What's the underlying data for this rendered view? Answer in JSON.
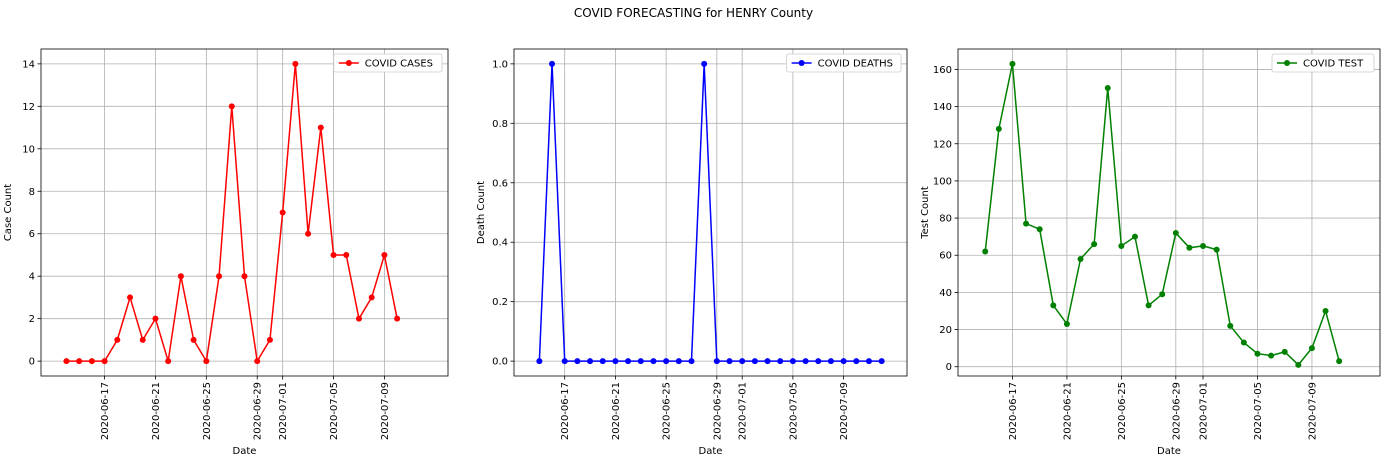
{
  "figure": {
    "suptitle": "COVID FORECASTING for HENRY County"
  },
  "chart_data": [
    {
      "type": "line",
      "title": "",
      "xlabel": "Date",
      "ylabel": "Case Count",
      "color": "#ff0000",
      "legend_position": "top-right",
      "grid": true,
      "x_start": "2020-06-14",
      "x_end": "2020-07-12",
      "xlim": [
        "2020-06-12",
        "2020-07-14"
      ],
      "ylim": [
        -0.7,
        14.7
      ],
      "yticks": [
        0,
        2,
        4,
        6,
        8,
        10,
        12,
        14
      ],
      "ytick_labels": [
        "0",
        "2",
        "4",
        "6",
        "8",
        "10",
        "12",
        "14"
      ],
      "xticks": [
        "2020-06-17",
        "2020-06-21",
        "2020-06-25",
        "2020-06-29",
        "2020-07-01",
        "2020-07-05",
        "2020-07-09"
      ],
      "series": [
        {
          "name": "COVID CASES",
          "values": [
            0,
            0,
            0,
            0,
            1,
            3,
            1,
            2,
            0,
            4,
            1,
            0,
            4,
            12,
            4,
            0,
            1,
            7,
            14,
            6,
            11,
            5,
            5,
            2,
            3,
            5,
            2
          ]
        }
      ]
    },
    {
      "type": "line",
      "title": "",
      "xlabel": "Date",
      "ylabel": "Death Count",
      "color": "#0000ff",
      "legend_position": "top-right",
      "grid": true,
      "x_start": "2020-06-15",
      "x_end": "2020-07-12",
      "xlim": [
        "2020-06-13",
        "2020-07-14"
      ],
      "ylim": [
        -0.05,
        1.05
      ],
      "yticks": [
        0,
        0.2,
        0.4,
        0.6,
        0.8,
        1.0
      ],
      "ytick_labels": [
        "0.0",
        "0.2",
        "0.4",
        "0.6",
        "0.8",
        "1.0"
      ],
      "xticks": [
        "2020-06-17",
        "2020-06-21",
        "2020-06-25",
        "2020-06-29",
        "2020-07-01",
        "2020-07-05",
        "2020-07-09"
      ],
      "series": [
        {
          "name": "COVID DEATHS",
          "values": [
            0,
            1,
            0,
            0,
            0,
            0,
            0,
            0,
            0,
            0,
            0,
            0,
            0,
            1,
            0,
            0,
            0,
            0,
            0,
            0,
            0,
            0,
            0,
            0,
            0,
            0,
            0,
            0
          ]
        }
      ]
    },
    {
      "type": "line",
      "title": "",
      "xlabel": "Date",
      "ylabel": "Test Count",
      "color": "#008000",
      "legend_position": "top-right",
      "grid": true,
      "x_start": "2020-06-15",
      "x_end": "2020-07-12",
      "xlim": [
        "2020-06-13",
        "2020-07-14"
      ],
      "ylim": [
        -5,
        171
      ],
      "yticks": [
        0,
        20,
        40,
        60,
        80,
        100,
        120,
        140,
        160
      ],
      "ytick_labels": [
        "0",
        "20",
        "40",
        "60",
        "80",
        "100",
        "120",
        "140",
        "160"
      ],
      "xticks": [
        "2020-06-17",
        "2020-06-21",
        "2020-06-25",
        "2020-06-29",
        "2020-07-01",
        "2020-07-05",
        "2020-07-09"
      ],
      "series": [
        {
          "name": "COVID TEST",
          "values": [
            62,
            128,
            163,
            77,
            74,
            33,
            23,
            58,
            66,
            150,
            65,
            70,
            33,
            39,
            72,
            64,
            65,
            63,
            22,
            13,
            7,
            6,
            8,
            1,
            10,
            30,
            3
          ]
        }
      ]
    }
  ]
}
